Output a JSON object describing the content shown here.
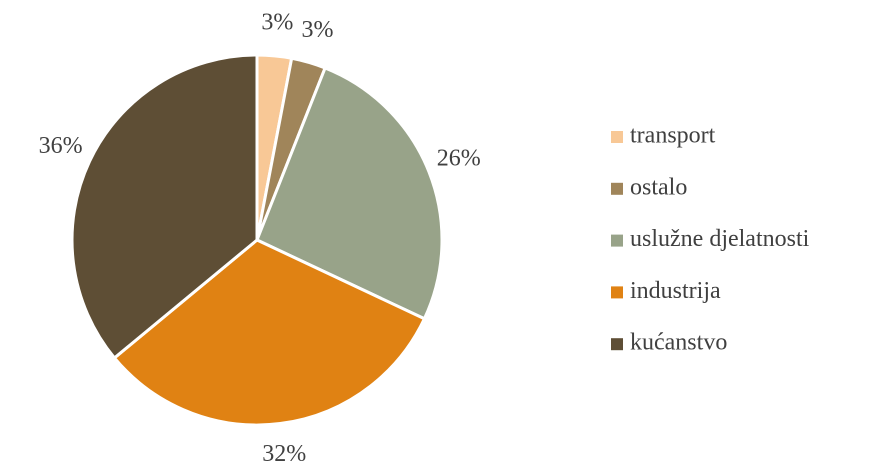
{
  "chart_data": {
    "type": "pie",
    "categories": [
      "transport",
      "ostalo",
      "uslužne djelatnosti",
      "industrija",
      "kućanstvo"
    ],
    "values": [
      3,
      3,
      26,
      32,
      36
    ],
    "value_labels": [
      "3%",
      "3%",
      "26%",
      "32%",
      "36%"
    ],
    "colors": [
      "#f8c896",
      "#a0855a",
      "#98a389",
      "#e08213",
      "#5e4e35"
    ],
    "legend": "right"
  }
}
